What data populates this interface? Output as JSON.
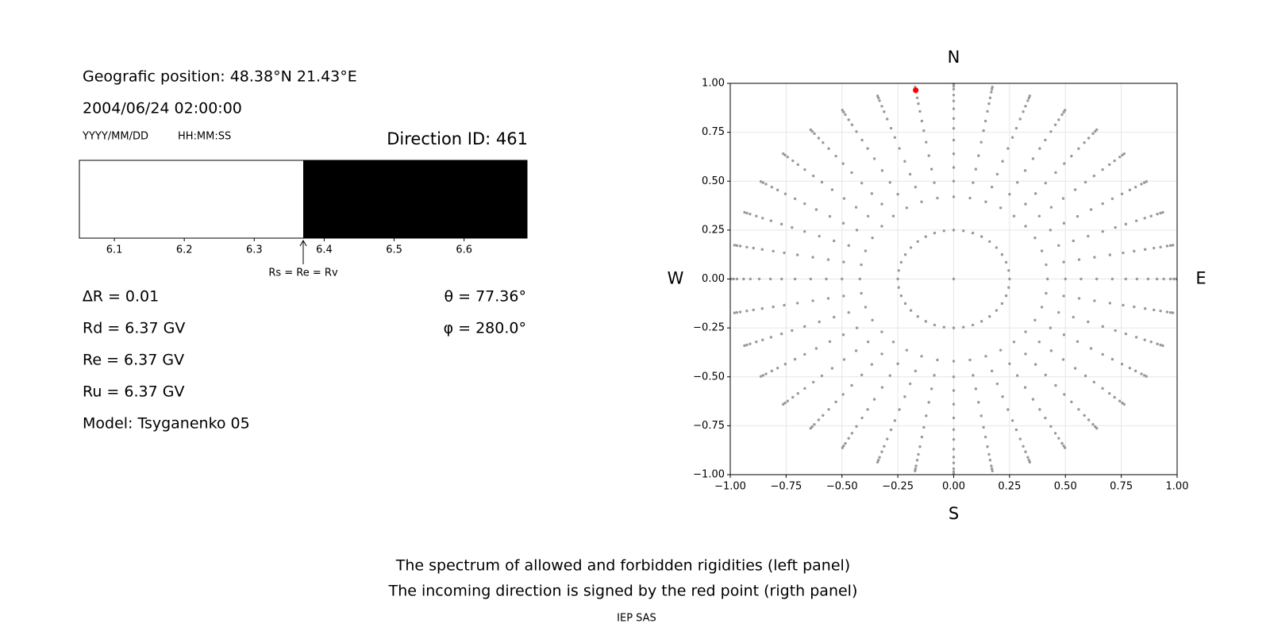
{
  "info": {
    "position": "Geografic position: 48.38°N 21.43°E",
    "datetime": "2004/06/24 02:00:00",
    "date_format": "YYYY/MM/DD",
    "time_format": "HH:MM:SS",
    "direction": "Direction ID: 461",
    "delta_r": "∆R = 0.01",
    "rd": "Rd = 6.37 GV",
    "re": "Re = 6.37 GV",
    "ru": "Ru = 6.37 GV",
    "model": "Model: Tsyganenko 05",
    "theta": "θ = 77.36°",
    "phi": "φ = 280.0°"
  },
  "chart_data": [
    {
      "type": "range",
      "xlim": [
        6.05,
        6.69
      ],
      "xticks": [
        6.1,
        6.2,
        6.3,
        6.4,
        6.5,
        6.6
      ],
      "series": [
        {
          "color": "#ffffff",
          "start": [
            6.05
          ],
          "end": [
            6.37
          ]
        },
        {
          "color": "#000000",
          "start": [
            6.37
          ],
          "end": [
            6.69
          ]
        }
      ],
      "annotation": {
        "text": "Rs = Re = Rv",
        "x": 6.37
      }
    },
    {
      "type": "scatter",
      "xlim": [
        -1,
        1
      ],
      "ylim": [
        -1,
        1
      ],
      "grid": true,
      "xticks": [
        {
          "value": -1,
          "label": "−1.00"
        },
        {
          "value": -0.75,
          "label": "−0.75"
        },
        {
          "value": -0.5,
          "label": "−0.50"
        },
        {
          "value": -0.25,
          "label": "−0.25"
        },
        {
          "value": 0,
          "label": "0.00"
        },
        {
          "value": 0.25,
          "label": "0.25"
        },
        {
          "value": 0.5,
          "label": "0.50"
        },
        {
          "value": 0.75,
          "label": "0.75"
        },
        {
          "value": 1,
          "label": "1.00"
        }
      ],
      "yticks": [
        {
          "value": -1,
          "label": "−1.00"
        },
        {
          "value": -0.75,
          "label": "−0.75"
        },
        {
          "value": -0.5,
          "label": "−0.50"
        },
        {
          "value": -0.25,
          "label": "−0.25"
        },
        {
          "value": 0,
          "label": "0.00"
        },
        {
          "value": 0.25,
          "label": "0.25"
        },
        {
          "value": 0.5,
          "label": "0.50"
        },
        {
          "value": 0.75,
          "label": "0.75"
        },
        {
          "value": 1,
          "label": "1.00"
        }
      ],
      "labels": {
        "north": "N",
        "south": "S",
        "west": "W",
        "east": "E"
      },
      "series": [
        {
          "color": "#999999",
          "azimuths": [
            0,
            10,
            20,
            30,
            40,
            50,
            60,
            70,
            80,
            90,
            100,
            110,
            120,
            130,
            140,
            150,
            160,
            170,
            180,
            190,
            200,
            210,
            220,
            230,
            240,
            250,
            260,
            270,
            280,
            290,
            300,
            310,
            320,
            330,
            340,
            350
          ],
          "radii": [
            0.25,
            0.42,
            0.5,
            0.57,
            0.64,
            0.71,
            0.77,
            0.82,
            0.87,
            0.91,
            0.94,
            0.97,
            0.985,
            0.996
          ]
        },
        {
          "color": "#999999",
          "x": [
            0
          ],
          "y": [
            0
          ]
        },
        {
          "color": "#ff0000",
          "x": [
            -0.17
          ],
          "y": [
            0.965
          ]
        }
      ]
    }
  ],
  "caption": [
    "The spectrum of allowed and forbidden rigidities (left panel)",
    "The incoming direction is signed by the red point (rigth panel)"
  ],
  "footer": "IEP SAS"
}
